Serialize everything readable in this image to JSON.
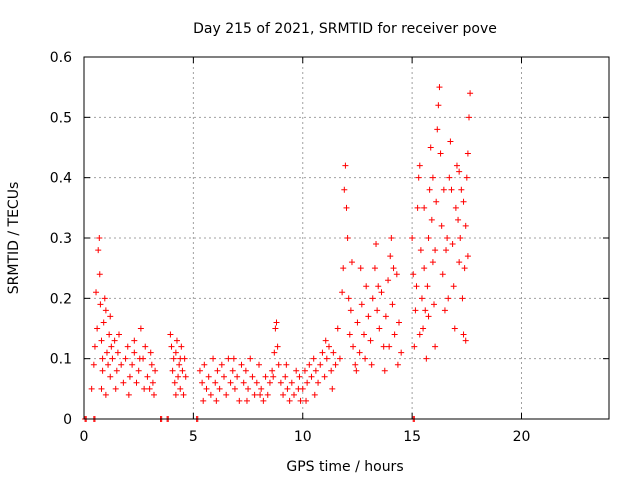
{
  "chart_data": {
    "type": "scatter",
    "title": "Day 215 of 2021, SRMTID for receiver pove",
    "xlabel": "GPS time / hours",
    "ylabel": "SRMTID / TECUs",
    "xlim": [
      0,
      24
    ],
    "ylim": [
      0,
      0.6
    ],
    "xticks": [
      0,
      5,
      10,
      15,
      20
    ],
    "yticks": [
      0,
      0.1,
      0.2,
      0.3,
      0.4,
      0.5,
      0.6
    ],
    "grid": true,
    "marker": "plus",
    "color": "#ff0000",
    "series": [
      {
        "name": "SRMTID",
        "points": [
          [
            0.05,
            0.0
          ],
          [
            0.1,
            0.0
          ],
          [
            0.45,
            0.0
          ],
          [
            0.5,
            0.0
          ],
          [
            3.5,
            0.0
          ],
          [
            3.55,
            0.0
          ],
          [
            3.8,
            0.0
          ],
          [
            3.85,
            0.0
          ],
          [
            5.15,
            0.0
          ],
          [
            5.2,
            0.0
          ],
          [
            15.05,
            0.0
          ],
          [
            15.1,
            0.0
          ],
          [
            0.35,
            0.05
          ],
          [
            0.45,
            0.09
          ],
          [
            0.5,
            0.12
          ],
          [
            0.55,
            0.21
          ],
          [
            0.6,
            0.15
          ],
          [
            0.65,
            0.28
          ],
          [
            0.7,
            0.3
          ],
          [
            0.72,
            0.24
          ],
          [
            0.75,
            0.19
          ],
          [
            0.8,
            0.13
          ],
          [
            0.85,
            0.08
          ],
          [
            0.9,
            0.16
          ],
          [
            0.95,
            0.2
          ],
          [
            1.0,
            0.18
          ],
          [
            1.05,
            0.11
          ],
          [
            1.1,
            0.09
          ],
          [
            1.15,
            0.14
          ],
          [
            1.2,
            0.07
          ],
          [
            1.25,
            0.12
          ],
          [
            1.3,
            0.1
          ],
          [
            1.4,
            0.13
          ],
          [
            1.5,
            0.08
          ],
          [
            1.55,
            0.11
          ],
          [
            1.6,
            0.14
          ],
          [
            1.7,
            0.09
          ],
          [
            1.8,
            0.06
          ],
          [
            1.9,
            0.1
          ],
          [
            2.0,
            0.12
          ],
          [
            2.1,
            0.07
          ],
          [
            2.2,
            0.09
          ],
          [
            2.3,
            0.11
          ],
          [
            2.4,
            0.06
          ],
          [
            2.5,
            0.08
          ],
          [
            2.6,
            0.15
          ],
          [
            2.7,
            0.1
          ],
          [
            2.8,
            0.12
          ],
          [
            2.9,
            0.07
          ],
          [
            3.0,
            0.05
          ],
          [
            3.1,
            0.09
          ],
          [
            3.15,
            0.06
          ],
          [
            3.2,
            0.04
          ],
          [
            3.25,
            0.08
          ],
          [
            0.8,
            0.05
          ],
          [
            0.85,
            0.1
          ],
          [
            1.0,
            0.04
          ],
          [
            1.2,
            0.17
          ],
          [
            1.45,
            0.05
          ],
          [
            2.05,
            0.04
          ],
          [
            2.3,
            0.13
          ],
          [
            2.55,
            0.1
          ],
          [
            2.75,
            0.05
          ],
          [
            3.05,
            0.11
          ],
          [
            3.95,
            0.14
          ],
          [
            4.0,
            0.12
          ],
          [
            4.05,
            0.08
          ],
          [
            4.1,
            0.1
          ],
          [
            4.15,
            0.06
          ],
          [
            4.2,
            0.11
          ],
          [
            4.25,
            0.13
          ],
          [
            4.3,
            0.07
          ],
          [
            4.35,
            0.09
          ],
          [
            4.4,
            0.05
          ],
          [
            4.45,
            0.12
          ],
          [
            4.5,
            0.08
          ],
          [
            4.55,
            0.04
          ],
          [
            4.6,
            0.1
          ],
          [
            4.65,
            0.07
          ],
          [
            4.2,
            0.04
          ],
          [
            4.4,
            0.1
          ],
          [
            5.3,
            0.08
          ],
          [
            5.4,
            0.06
          ],
          [
            5.5,
            0.09
          ],
          [
            5.6,
            0.05
          ],
          [
            5.7,
            0.07
          ],
          [
            5.8,
            0.04
          ],
          [
            5.9,
            0.1
          ],
          [
            6.0,
            0.06
          ],
          [
            6.1,
            0.08
          ],
          [
            6.2,
            0.05
          ],
          [
            6.3,
            0.09
          ],
          [
            6.4,
            0.07
          ],
          [
            6.5,
            0.04
          ],
          [
            6.6,
            0.1
          ],
          [
            6.7,
            0.06
          ],
          [
            6.8,
            0.08
          ],
          [
            6.9,
            0.05
          ],
          [
            7.0,
            0.07
          ],
          [
            7.1,
            0.03
          ],
          [
            7.2,
            0.09
          ],
          [
            7.3,
            0.06
          ],
          [
            7.4,
            0.08
          ],
          [
            7.5,
            0.05
          ],
          [
            7.6,
            0.1
          ],
          [
            7.7,
            0.07
          ],
          [
            7.8,
            0.04
          ],
          [
            7.9,
            0.06
          ],
          [
            8.0,
            0.09
          ],
          [
            8.1,
            0.05
          ],
          [
            8.2,
            0.03
          ],
          [
            8.3,
            0.07
          ],
          [
            8.4,
            0.04
          ],
          [
            8.5,
            0.06
          ],
          [
            8.6,
            0.08
          ],
          [
            8.7,
            0.11
          ],
          [
            8.75,
            0.15
          ],
          [
            8.8,
            0.16
          ],
          [
            8.85,
            0.12
          ],
          [
            8.9,
            0.09
          ],
          [
            9.0,
            0.06
          ],
          [
            9.1,
            0.04
          ],
          [
            9.2,
            0.07
          ],
          [
            9.3,
            0.05
          ],
          [
            9.4,
            0.03
          ],
          [
            9.5,
            0.06
          ],
          [
            9.6,
            0.04
          ],
          [
            9.7,
            0.08
          ],
          [
            9.8,
            0.05
          ],
          [
            9.9,
            0.03
          ],
          [
            10.0,
            0.05
          ],
          [
            10.1,
            0.08
          ],
          [
            10.2,
            0.06
          ],
          [
            10.3,
            0.09
          ],
          [
            10.4,
            0.07
          ],
          [
            10.5,
            0.1
          ],
          [
            10.6,
            0.08
          ],
          [
            10.7,
            0.06
          ],
          [
            10.8,
            0.09
          ],
          [
            10.9,
            0.11
          ],
          [
            11.0,
            0.07
          ],
          [
            11.1,
            0.1
          ],
          [
            11.2,
            0.12
          ],
          [
            11.3,
            0.08
          ],
          [
            11.4,
            0.11
          ],
          [
            11.5,
            0.09
          ],
          [
            5.45,
            0.03
          ],
          [
            6.05,
            0.03
          ],
          [
            6.85,
            0.1
          ],
          [
            7.45,
            0.03
          ],
          [
            8.05,
            0.04
          ],
          [
            8.65,
            0.07
          ],
          [
            9.25,
            0.09
          ],
          [
            9.85,
            0.07
          ],
          [
            10.15,
            0.03
          ],
          [
            10.55,
            0.04
          ],
          [
            11.05,
            0.13
          ],
          [
            11.35,
            0.05
          ],
          [
            11.6,
            0.15
          ],
          [
            11.7,
            0.1
          ],
          [
            11.8,
            0.21
          ],
          [
            11.85,
            0.25
          ],
          [
            11.9,
            0.38
          ],
          [
            11.95,
            0.42
          ],
          [
            12.0,
            0.35
          ],
          [
            12.05,
            0.3
          ],
          [
            12.1,
            0.2
          ],
          [
            12.15,
            0.14
          ],
          [
            12.2,
            0.18
          ],
          [
            12.3,
            0.12
          ],
          [
            12.4,
            0.09
          ],
          [
            12.5,
            0.16
          ],
          [
            12.6,
            0.11
          ],
          [
            12.7,
            0.19
          ],
          [
            12.8,
            0.14
          ],
          [
            12.9,
            0.22
          ],
          [
            13.0,
            0.17
          ],
          [
            13.1,
            0.13
          ],
          [
            13.2,
            0.2
          ],
          [
            13.3,
            0.25
          ],
          [
            13.35,
            0.29
          ],
          [
            13.4,
            0.18
          ],
          [
            13.5,
            0.15
          ],
          [
            13.6,
            0.21
          ],
          [
            13.7,
            0.12
          ],
          [
            13.8,
            0.17
          ],
          [
            13.9,
            0.23
          ],
          [
            14.0,
            0.27
          ],
          [
            14.05,
            0.3
          ],
          [
            14.1,
            0.19
          ],
          [
            14.2,
            0.14
          ],
          [
            14.3,
            0.24
          ],
          [
            14.4,
            0.16
          ],
          [
            14.5,
            0.11
          ],
          [
            12.25,
            0.26
          ],
          [
            12.45,
            0.08
          ],
          [
            12.65,
            0.25
          ],
          [
            12.85,
            0.1
          ],
          [
            13.15,
            0.09
          ],
          [
            13.45,
            0.22
          ],
          [
            13.75,
            0.08
          ],
          [
            13.95,
            0.12
          ],
          [
            14.15,
            0.25
          ],
          [
            14.35,
            0.09
          ],
          [
            15.0,
            0.3
          ],
          [
            15.05,
            0.24
          ],
          [
            15.1,
            0.12
          ],
          [
            15.15,
            0.18
          ],
          [
            15.2,
            0.22
          ],
          [
            15.25,
            0.35
          ],
          [
            15.3,
            0.4
          ],
          [
            15.35,
            0.42
          ],
          [
            15.4,
            0.28
          ],
          [
            15.45,
            0.2
          ],
          [
            15.5,
            0.15
          ],
          [
            15.55,
            0.25
          ],
          [
            15.6,
            0.18
          ],
          [
            15.65,
            0.1
          ],
          [
            15.7,
            0.22
          ],
          [
            15.75,
            0.3
          ],
          [
            15.8,
            0.38
          ],
          [
            15.85,
            0.45
          ],
          [
            15.9,
            0.33
          ],
          [
            15.95,
            0.26
          ],
          [
            16.0,
            0.19
          ],
          [
            16.05,
            0.28
          ],
          [
            16.1,
            0.36
          ],
          [
            16.15,
            0.48
          ],
          [
            16.2,
            0.52
          ],
          [
            16.25,
            0.55
          ],
          [
            16.3,
            0.44
          ],
          [
            16.35,
            0.32
          ],
          [
            16.4,
            0.24
          ],
          [
            16.5,
            0.18
          ],
          [
            16.6,
            0.3
          ],
          [
            16.7,
            0.4
          ],
          [
            16.75,
            0.46
          ],
          [
            16.8,
            0.38
          ],
          [
            16.85,
            0.29
          ],
          [
            16.9,
            0.22
          ],
          [
            17.0,
            0.35
          ],
          [
            17.05,
            0.42
          ],
          [
            17.1,
            0.33
          ],
          [
            17.15,
            0.26
          ],
          [
            17.2,
            0.3
          ],
          [
            17.25,
            0.38
          ],
          [
            17.3,
            0.2
          ],
          [
            17.35,
            0.14
          ],
          [
            17.4,
            0.25
          ],
          [
            17.45,
            0.32
          ],
          [
            17.5,
            0.4
          ],
          [
            17.55,
            0.44
          ],
          [
            17.6,
            0.5
          ],
          [
            17.65,
            0.54
          ],
          [
            15.35,
            0.14
          ],
          [
            15.55,
            0.35
          ],
          [
            15.75,
            0.17
          ],
          [
            15.95,
            0.4
          ],
          [
            16.05,
            0.12
          ],
          [
            16.45,
            0.38
          ],
          [
            16.55,
            0.28
          ],
          [
            16.65,
            0.2
          ],
          [
            16.95,
            0.15
          ],
          [
            17.15,
            0.41
          ],
          [
            17.35,
            0.36
          ],
          [
            17.45,
            0.13
          ],
          [
            17.55,
            0.27
          ]
        ]
      }
    ]
  }
}
